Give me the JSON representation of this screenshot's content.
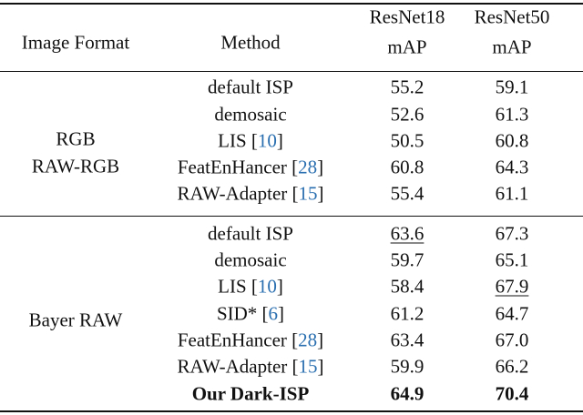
{
  "header": {
    "image_format": "Image Format",
    "method": "Method",
    "col1": [
      "ResNet18",
      "mAP"
    ],
    "col2": [
      "ResNet50",
      "mAP"
    ]
  },
  "groups": [
    {
      "format": [
        "RGB",
        "RAW-RGB"
      ],
      "rows": [
        {
          "method": "default ISP",
          "r18": "55.2",
          "r50": "59.1"
        },
        {
          "method": "demosaic",
          "r18": "52.6",
          "r50": "61.3"
        },
        {
          "method": "LIS",
          "cite": [
            "[",
            "10",
            "]"
          ],
          "r18": "50.5",
          "r50": "60.8"
        },
        {
          "method": "FeatEnHancer",
          "cite": [
            "[",
            "28",
            "]"
          ],
          "r18": "60.8",
          "r50": "64.3"
        },
        {
          "method": "RAW-Adapter",
          "cite": [
            "[",
            "15",
            "]"
          ],
          "r18": "55.4",
          "r50": "61.1"
        }
      ]
    },
    {
      "format": [
        "Bayer RAW"
      ],
      "rows": [
        {
          "method": "default ISP",
          "r18": "63.6",
          "r50": "67.3",
          "underline": [
            "r18"
          ]
        },
        {
          "method": "demosaic",
          "r18": "59.7",
          "r50": "65.1"
        },
        {
          "method": "LIS",
          "cite": [
            "[",
            "10",
            "]"
          ],
          "r18": "58.4",
          "r50": "67.9",
          "underline": [
            "r50"
          ]
        },
        {
          "method": "SID*",
          "cite": [
            "[",
            "6",
            "]"
          ],
          "r18": "61.2",
          "r50": "64.7"
        },
        {
          "method": "FeatEnHancer",
          "cite": [
            "[",
            "28",
            "]"
          ],
          "r18": "63.4",
          "r50": "67.0"
        },
        {
          "method": "RAW-Adapter",
          "cite": [
            "[",
            "15",
            "]"
          ],
          "r18": "59.9",
          "r50": "66.2"
        },
        {
          "method": "Our Dark-ISP",
          "r18": "64.9",
          "r50": "70.4",
          "bold": true
        }
      ]
    }
  ]
}
